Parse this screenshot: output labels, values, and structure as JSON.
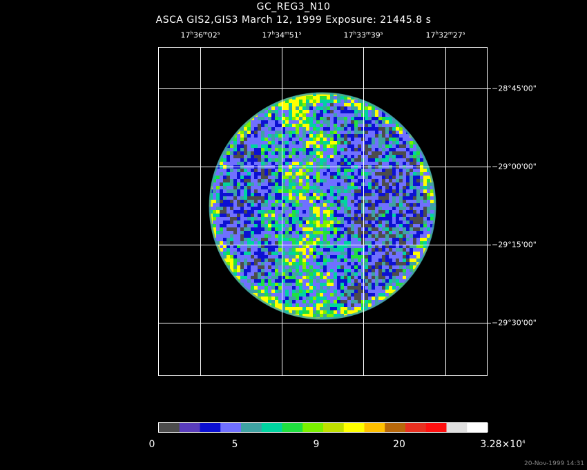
{
  "title_line1": "GC_REG3_N10",
  "title_line2": "ASCA GIS2,GIS3 March 12, 1999 Exposure: 21445.8 s",
  "ra_labels": [
    {
      "h": "17",
      "m": "36",
      "s": "02"
    },
    {
      "h": "17",
      "m": "34",
      "s": "51"
    },
    {
      "h": "17",
      "m": "33",
      "s": "39"
    },
    {
      "h": "17",
      "m": "32",
      "s": "27"
    }
  ],
  "dec_labels": [
    "−28°45'00\"",
    "−29°00'00\"",
    "−29°15'00\"",
    "−29°30'00\""
  ],
  "colorbar": {
    "colors": [
      "#4c4c4c",
      "#5a3dbc",
      "#0c10d2",
      "#7070ff",
      "#3fa3a3",
      "#00d4a0",
      "#20e040",
      "#7af000",
      "#c0e000",
      "#ffff00",
      "#ffc000",
      "#b8680a",
      "#e83020",
      "#ff1010",
      "#e0e0e0",
      "#ffffff"
    ],
    "tick_labels": [
      "0",
      "5",
      "9",
      "20"
    ],
    "max_label_mantissa": "3.28×10",
    "max_label_exp": "4"
  },
  "timestamp": "20-Nov-1999 14:31"
}
